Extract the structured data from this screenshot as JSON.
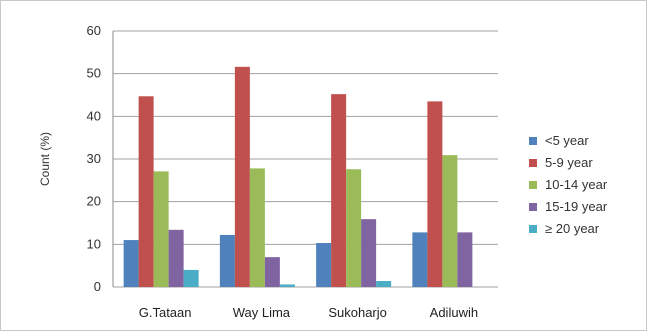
{
  "chart_data": {
    "type": "bar",
    "title": "",
    "xlabel": "",
    "ylabel": "Count (%)",
    "ylim": [
      0,
      60
    ],
    "yticks": [
      0,
      10,
      20,
      30,
      40,
      50,
      60
    ],
    "grid": true,
    "legend_position": "right",
    "categories": [
      "G.Tataan",
      "Way Lima",
      "Sukoharjo",
      "Adiluwih"
    ],
    "series": [
      {
        "name": "<5 year",
        "color": "#4f81bd",
        "values": [
          11,
          12.2,
          10.3,
          12.8
        ]
      },
      {
        "name": "5-9 year",
        "color": "#c0504d",
        "values": [
          44.7,
          51.6,
          45.2,
          43.5
        ]
      },
      {
        "name": "10-14 year",
        "color": "#9bbb59",
        "values": [
          27.1,
          27.8,
          27.6,
          30.9
        ]
      },
      {
        "name": "15-19 year",
        "color": "#8064a2",
        "values": [
          13.4,
          7,
          15.9,
          12.8
        ]
      },
      {
        "name": "≥ 20 year",
        "color": "#4bacc6",
        "values": [
          4,
          0.6,
          1.4,
          0
        ]
      }
    ]
  }
}
